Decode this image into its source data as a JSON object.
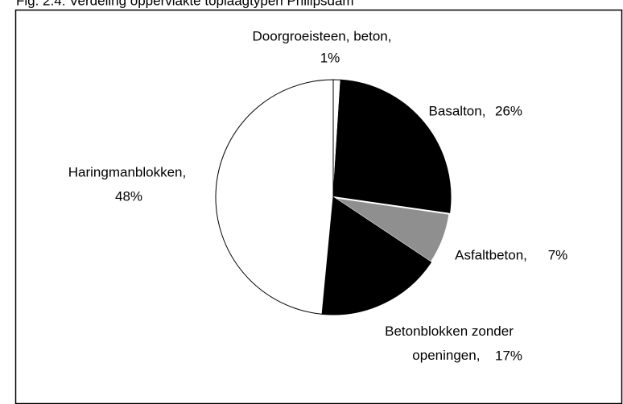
{
  "chart_data": {
    "type": "pie",
    "title": "Fig. 2.4: Verdeling oppervlakte toplaagtypen Philipsdam",
    "categories": [
      "Doorgroeisteen, beton,",
      "Basalton,",
      "Asfaltbeton,",
      "Betonblokken zonder openingen,",
      "Haringmanblokken,"
    ],
    "values": [
      1,
      26,
      7,
      17,
      48
    ],
    "value_labels": [
      "1%",
      "26%",
      "7%",
      "17%",
      "48%"
    ],
    "colors": [
      "#ffffff",
      "#000000",
      "#8f8f8f",
      "#000000",
      "#ffffff"
    ]
  }
}
